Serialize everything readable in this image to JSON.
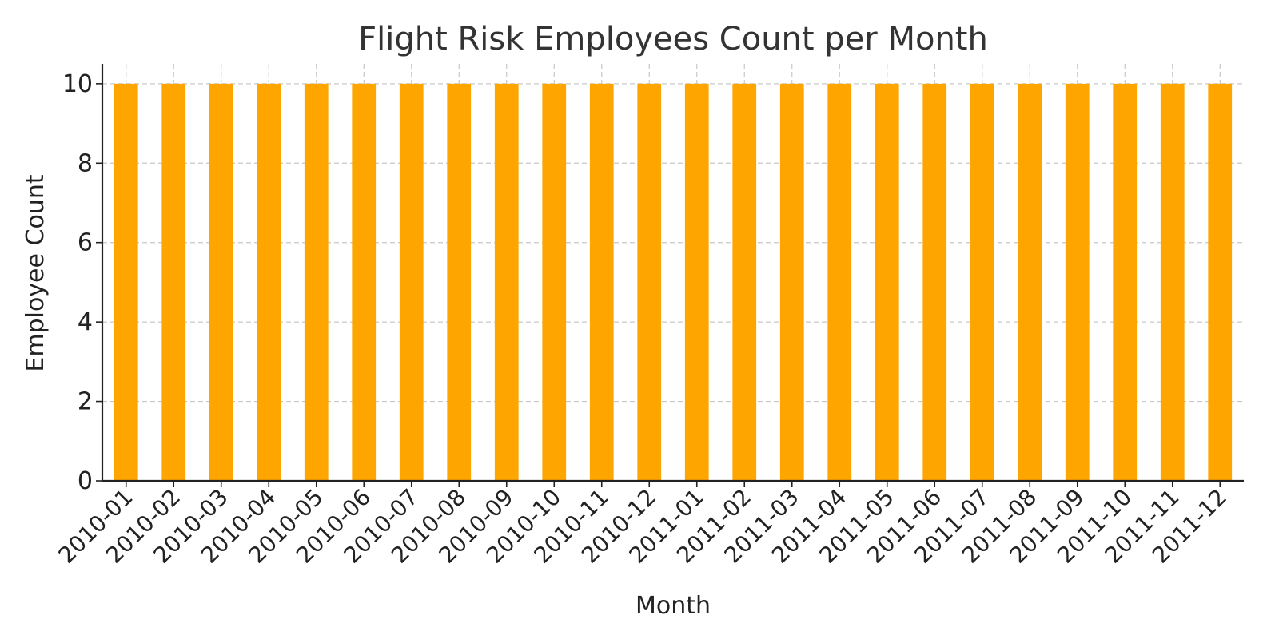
{
  "chart_data": {
    "type": "bar",
    "title": "Flight Risk Employees Count per Month",
    "xlabel": "Month",
    "ylabel": "Employee Count",
    "categories": [
      "2010-01",
      "2010-02",
      "2010-03",
      "2010-04",
      "2010-05",
      "2010-06",
      "2010-07",
      "2010-08",
      "2010-09",
      "2010-10",
      "2010-11",
      "2010-12",
      "2011-01",
      "2011-02",
      "2011-03",
      "2011-04",
      "2011-05",
      "2011-06",
      "2011-07",
      "2011-08",
      "2011-09",
      "2011-10",
      "2011-11",
      "2011-12"
    ],
    "values": [
      10,
      10,
      10,
      10,
      10,
      10,
      10,
      10,
      10,
      10,
      10,
      10,
      10,
      10,
      10,
      10,
      10,
      10,
      10,
      10,
      10,
      10,
      10,
      10
    ],
    "ylim": [
      0,
      10.5
    ],
    "yticks": [
      0,
      2,
      4,
      6,
      8,
      10
    ],
    "grid": true,
    "bar_color": "#FFA500",
    "grid_color": "#c8c8c8",
    "axis_color": "#222222"
  }
}
